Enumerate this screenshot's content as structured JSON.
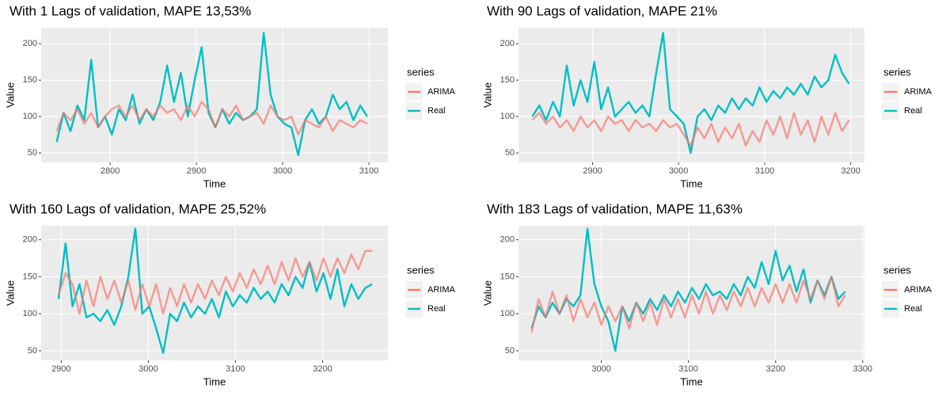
{
  "chart_data": [
    {
      "type": "line",
      "title": "With 1 Lags of validation, MAPE 13,53%",
      "x_label": "Time",
      "y_label": "Value",
      "legend_title": "series",
      "x": [
        2738,
        2746,
        2754,
        2762,
        2770,
        2778,
        2786,
        2794,
        2802,
        2810,
        2818,
        2826,
        2834,
        2842,
        2850,
        2858,
        2866,
        2874,
        2882,
        2890,
        2898,
        2906,
        2914,
        2922,
        2930,
        2938,
        2946,
        2954,
        2962,
        2970,
        2978,
        2986,
        2994,
        3002,
        3010,
        3018,
        3026,
        3034,
        3042,
        3050,
        3058,
        3066,
        3074,
        3082,
        3090,
        3098
      ],
      "series": [
        {
          "name": "ARIMA",
          "color": "#F8766D",
          "values": [
            80,
            105,
            95,
            110,
            90,
            105,
            85,
            100,
            110,
            115,
            100,
            115,
            95,
            110,
            100,
            115,
            105,
            110,
            95,
            115,
            100,
            120,
            110,
            85,
            110,
            100,
            115,
            95,
            100,
            105,
            90,
            115,
            100,
            95,
            100,
            75,
            95,
            90,
            85,
            100,
            80,
            95,
            90,
            85,
            95,
            90
          ]
        },
        {
          "name": "Real",
          "color": "#00BFC4",
          "values": [
            65,
            105,
            80,
            115,
            95,
            178,
            85,
            100,
            75,
            110,
            95,
            130,
            90,
            110,
            95,
            120,
            170,
            120,
            160,
            100,
            150,
            195,
            105,
            85,
            110,
            90,
            105,
            95,
            100,
            110,
            215,
            130,
            100,
            90,
            85,
            47,
            95,
            110,
            90,
            100,
            130,
            110,
            120,
            95,
            115,
            100
          ]
        }
      ],
      "xlim": [
        2720,
        3122
      ],
      "ylim": [
        37,
        222
      ],
      "xticks": [
        2800,
        2900,
        3000,
        3100
      ],
      "yticks": [
        50,
        100,
        150,
        200
      ],
      "grid": true
    },
    {
      "type": "line",
      "title": "With 90 Lags of validation, MAPE 21%",
      "x_label": "Time",
      "y_label": "Value",
      "legend_title": "series",
      "x": [
        2830,
        2838,
        2846,
        2854,
        2862,
        2870,
        2878,
        2886,
        2894,
        2902,
        2910,
        2918,
        2926,
        2934,
        2942,
        2950,
        2958,
        2966,
        2974,
        2982,
        2990,
        2998,
        3006,
        3014,
        3022,
        3030,
        3038,
        3046,
        3054,
        3062,
        3070,
        3078,
        3086,
        3094,
        3102,
        3110,
        3118,
        3126,
        3134,
        3142,
        3150,
        3158,
        3166,
        3174,
        3182,
        3190,
        3198
      ],
      "series": [
        {
          "name": "ARIMA",
          "color": "#F8766D",
          "values": [
            95,
            105,
            90,
            100,
            85,
            95,
            80,
            100,
            85,
            95,
            80,
            100,
            90,
            95,
            80,
            95,
            85,
            90,
            80,
            95,
            85,
            90,
            75,
            60,
            85,
            70,
            90,
            65,
            85,
            70,
            90,
            60,
            80,
            65,
            95,
            75,
            100,
            70,
            105,
            75,
            95,
            65,
            100,
            75,
            105,
            80,
            95
          ]
        },
        {
          "name": "Real",
          "color": "#00BFC4",
          "values": [
            100,
            115,
            95,
            120,
            100,
            170,
            115,
            150,
            120,
            175,
            110,
            140,
            100,
            110,
            120,
            105,
            115,
            100,
            160,
            215,
            110,
            100,
            90,
            50,
            100,
            110,
            95,
            115,
            105,
            125,
            110,
            125,
            115,
            140,
            120,
            135,
            125,
            140,
            130,
            145,
            130,
            155,
            140,
            150,
            185,
            160,
            145
          ]
        }
      ],
      "xlim": [
        2814,
        3216
      ],
      "ylim": [
        37,
        222
      ],
      "xticks": [
        2900,
        3000,
        3100,
        3200
      ],
      "yticks": [
        50,
        100,
        150,
        200
      ],
      "grid": true
    },
    {
      "type": "line",
      "title": "With 160 Lags of validation, MAPE 25,52%",
      "x_label": "Time",
      "y_label": "Value",
      "legend_title": "series",
      "x": [
        2897,
        2905,
        2913,
        2921,
        2929,
        2937,
        2945,
        2953,
        2961,
        2969,
        2977,
        2985,
        2993,
        3001,
        3009,
        3017,
        3025,
        3033,
        3041,
        3049,
        3057,
        3065,
        3073,
        3081,
        3089,
        3097,
        3105,
        3113,
        3121,
        3129,
        3137,
        3145,
        3153,
        3161,
        3169,
        3177,
        3185,
        3193,
        3201,
        3209,
        3217,
        3225,
        3233,
        3241,
        3249,
        3257
      ],
      "series": [
        {
          "name": "ARIMA",
          "color": "#F8766D",
          "values": [
            125,
            155,
            140,
            100,
            145,
            110,
            150,
            120,
            145,
            115,
            145,
            105,
            140,
            110,
            140,
            100,
            135,
            110,
            140,
            115,
            140,
            120,
            145,
            125,
            150,
            130,
            155,
            135,
            160,
            140,
            165,
            140,
            170,
            145,
            175,
            150,
            170,
            145,
            175,
            150,
            175,
            155,
            180,
            160,
            185,
            185
          ]
        },
        {
          "name": "Real",
          "color": "#00BFC4",
          "values": [
            120,
            195,
            110,
            140,
            95,
            100,
            90,
            105,
            85,
            110,
            150,
            215,
            100,
            110,
            80,
            47,
            100,
            90,
            115,
            95,
            110,
            100,
            120,
            95,
            130,
            110,
            125,
            115,
            135,
            120,
            130,
            115,
            140,
            125,
            150,
            135,
            170,
            130,
            155,
            120,
            160,
            110,
            140,
            120,
            135,
            140
          ]
        }
      ],
      "xlim": [
        2877,
        3275
      ],
      "ylim": [
        37,
        219
      ],
      "xticks": [
        2900,
        3000,
        3100,
        3200
      ],
      "yticks": [
        50,
        100,
        150,
        200
      ],
      "grid": true
    },
    {
      "type": "line",
      "title": "With 183 Lags of validation, MAPE 11,63%",
      "x_label": "Time",
      "y_label": "Value",
      "legend_title": "series",
      "x": [
        2920,
        2928,
        2936,
        2944,
        2952,
        2960,
        2968,
        2976,
        2984,
        2992,
        3000,
        3008,
        3016,
        3024,
        3032,
        3040,
        3048,
        3056,
        3064,
        3072,
        3080,
        3088,
        3096,
        3104,
        3112,
        3120,
        3128,
        3136,
        3144,
        3152,
        3160,
        3168,
        3176,
        3184,
        3192,
        3200,
        3208,
        3216,
        3224,
        3232,
        3240,
        3248,
        3256,
        3264,
        3272,
        3280
      ],
      "series": [
        {
          "name": "ARIMA",
          "color": "#F8766D",
          "values": [
            75,
            120,
            95,
            130,
            100,
            125,
            90,
            120,
            95,
            115,
            85,
            110,
            90,
            110,
            80,
            115,
            90,
            115,
            85,
            120,
            95,
            120,
            95,
            125,
            100,
            130,
            100,
            125,
            105,
            130,
            110,
            135,
            110,
            135,
            115,
            140,
            115,
            140,
            115,
            145,
            120,
            145,
            120,
            150,
            110,
            125
          ]
        },
        {
          "name": "Real",
          "color": "#00BFC4",
          "values": [
            80,
            110,
            95,
            115,
            100,
            120,
            110,
            125,
            215,
            140,
            110,
            90,
            50,
            110,
            90,
            115,
            100,
            120,
            105,
            125,
            110,
            130,
            115,
            135,
            120,
            140,
            125,
            130,
            120,
            140,
            125,
            150,
            135,
            170,
            140,
            185,
            145,
            165,
            130,
            160,
            115,
            145,
            125,
            150,
            120,
            130
          ]
        }
      ],
      "xlim": [
        2905,
        3302
      ],
      "ylim": [
        37,
        219
      ],
      "xticks": [
        3000,
        3100,
        3200,
        3300
      ],
      "yticks": [
        50,
        100,
        150,
        200
      ],
      "grid": true
    }
  ]
}
